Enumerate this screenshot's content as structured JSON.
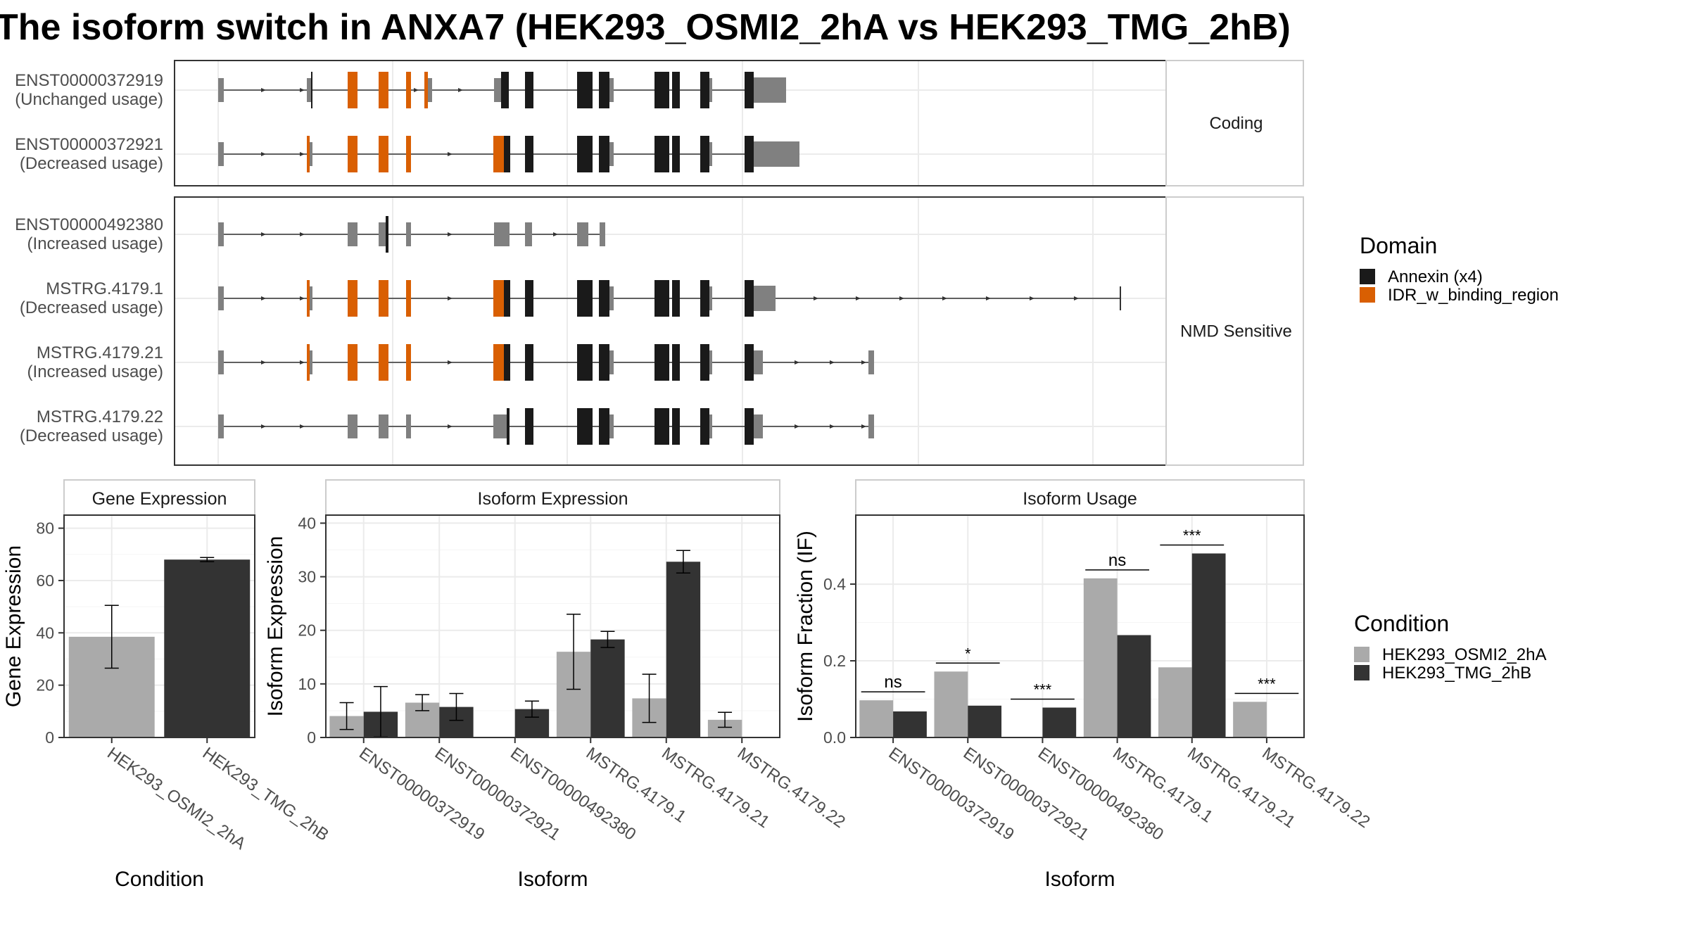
{
  "title": "The isoform switch in ANXA7 (HEK293_OSMI2_2hA vs HEK293_TMG_2hB)",
  "colors": {
    "annexin": "#1a1a1a",
    "idr": "#d95f02",
    "utr": "#808080",
    "osmi": "#aaaaaa",
    "tmg": "#333333",
    "grid": "#ebebeb"
  },
  "structure": {
    "facets": [
      {
        "label": "Coding",
        "transcripts": [
          {
            "id": "ENST00000372919",
            "usage": "(Unchanged usage)",
            "type": "coding_full"
          },
          {
            "id": "ENST00000372921",
            "usage": "(Decreased usage)",
            "type": "coding_alt"
          }
        ]
      },
      {
        "label": "NMD Sensitive",
        "transcripts": [
          {
            "id": "ENST00000492380",
            "usage": "(Increased usage)",
            "type": "nmd_fragment"
          },
          {
            "id": "MSTRG.4179.1",
            "usage": "(Decreased usage)",
            "type": "long_utr"
          },
          {
            "id": "MSTRG.4179.21",
            "usage": "(Increased usage)",
            "type": "mid_utr"
          },
          {
            "id": "MSTRG.4179.22",
            "usage": "(Decreased usage)",
            "type": "gray_start"
          }
        ]
      }
    ]
  },
  "legend_domain": {
    "title": "Domain",
    "items": [
      {
        "label": "Annexin (x4)",
        "color": "#1a1a1a"
      },
      {
        "label": "IDR_w_binding_region",
        "color": "#d95f02"
      }
    ]
  },
  "legend_condition": {
    "title": "Condition",
    "items": [
      {
        "label": "HEK293_OSMI2_2hA",
        "color": "#aaaaaa"
      },
      {
        "label": "HEK293_TMG_2hB",
        "color": "#333333"
      }
    ]
  },
  "chart_data": [
    {
      "type": "bar",
      "panel": "Gene Expression",
      "xlabel": "Condition",
      "ylabel": "Gene Expression",
      "ylim": [
        0,
        85
      ],
      "yticks": [
        0,
        20,
        40,
        60,
        80
      ],
      "categories": [
        "HEK293_OSMI2_2hA",
        "HEK293_TMG_2hB"
      ],
      "values": [
        38.5,
        68.0
      ],
      "errors": [
        12.0,
        0.8
      ]
    },
    {
      "type": "bar",
      "panel": "Isoform Expression",
      "xlabel": "Isoform",
      "ylabel": "Isoform Expression",
      "ylim": [
        0,
        41.5
      ],
      "yticks": [
        0,
        10,
        20,
        30,
        40
      ],
      "categories": [
        "ENST00000372919",
        "ENST00000372921",
        "ENST00000492380",
        "MSTRG.4179.1",
        "MSTRG.4179.21",
        "MSTRG.4179.22"
      ],
      "series": [
        {
          "name": "HEK293_OSMI2_2hA",
          "values": [
            4.0,
            6.5,
            0.0,
            16.0,
            7.3,
            3.3
          ],
          "errors": [
            2.5,
            1.5,
            0.0,
            7.0,
            4.5,
            1.4
          ]
        },
        {
          "name": "HEK293_TMG_2hB",
          "values": [
            4.8,
            5.7,
            5.3,
            18.3,
            32.8,
            0.0
          ],
          "errors": [
            4.7,
            2.5,
            1.5,
            1.5,
            2.1,
            0.0
          ]
        }
      ]
    },
    {
      "type": "bar",
      "panel": "Isoform Usage",
      "xlabel": "Isoform",
      "ylabel": "Isoform Fraction (IF)",
      "ylim": [
        0,
        0.58
      ],
      "yticks": [
        0.0,
        0.2,
        0.4
      ],
      "ytick_labels": [
        "0.0",
        "0.2",
        "0.4"
      ],
      "categories": [
        "ENST00000372919",
        "ENST00000372921",
        "ENST00000492380",
        "MSTRG.4179.1",
        "MSTRG.4179.21",
        "MSTRG.4179.22"
      ],
      "series": [
        {
          "name": "HEK293_OSMI2_2hA",
          "values": [
            0.097,
            0.172,
            0.0,
            0.415,
            0.183,
            0.093
          ]
        },
        {
          "name": "HEK293_TMG_2hB",
          "values": [
            0.068,
            0.083,
            0.078,
            0.267,
            0.48,
            0.0
          ]
        }
      ],
      "significance": [
        "ns",
        "*",
        "***",
        "ns",
        "***",
        "***"
      ]
    }
  ]
}
